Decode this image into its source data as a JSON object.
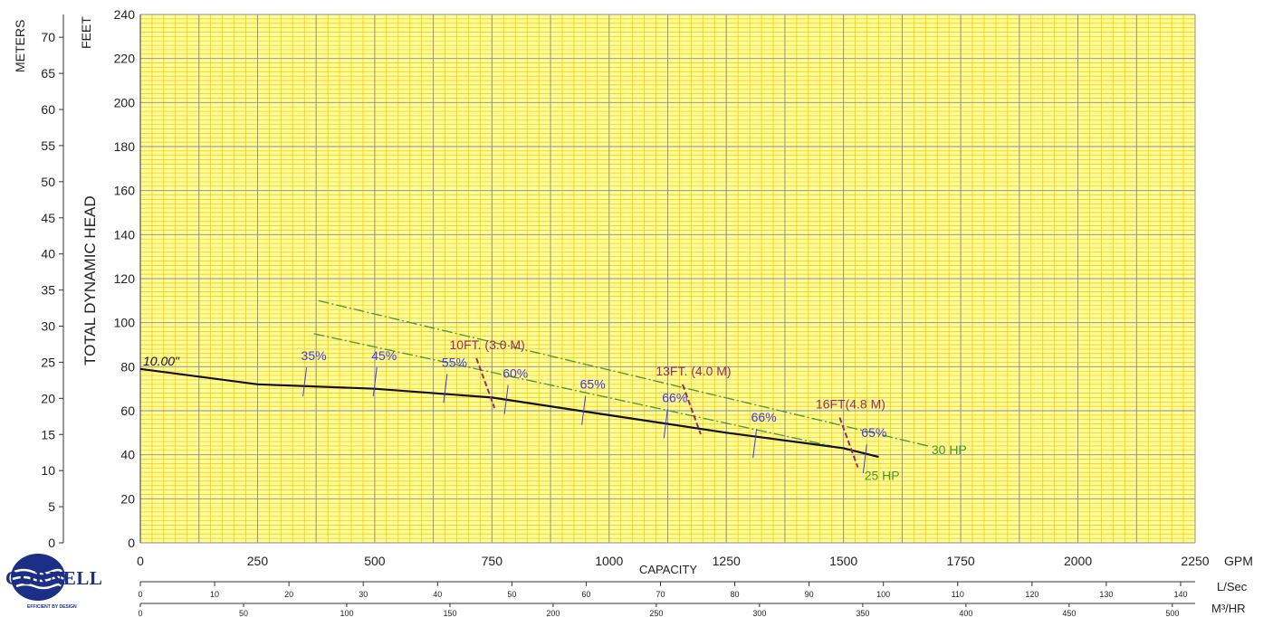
{
  "chart_data": {
    "type": "line",
    "ylabel": "TOTAL DYNAMIC HEAD",
    "y_units_left": "METERS",
    "y_units_right": "FEET",
    "xlabel": "CAPACITY",
    "x_units": [
      "GPM",
      "L/Sec",
      "M³/HR"
    ],
    "x_gpm_ticks": [
      0,
      250,
      500,
      750,
      1000,
      1250,
      1500,
      1750,
      2000,
      2250
    ],
    "x_lsec_ticks": [
      0,
      10,
      20,
      30,
      40,
      50,
      60,
      70,
      80,
      90,
      100,
      110,
      120,
      130,
      140
    ],
    "x_m3hr_ticks": [
      0,
      50,
      100,
      150,
      200,
      250,
      300,
      350,
      400,
      450,
      500
    ],
    "y_feet_ticks": [
      0,
      20,
      40,
      60,
      80,
      100,
      120,
      140,
      160,
      180,
      200,
      220,
      240
    ],
    "y_meter_ticks": [
      0,
      5,
      10,
      15,
      20,
      25,
      30,
      35,
      40,
      45,
      50,
      55,
      60,
      65,
      70
    ],
    "xlim_gpm": [
      0,
      2250
    ],
    "ylim_feet": [
      0,
      240
    ],
    "grid": true,
    "series": [
      {
        "name": "10.00\"",
        "color": "#111111",
        "x": [
          0,
          250,
          500,
          750,
          1000,
          1250,
          1500,
          1575
        ],
        "y": [
          79,
          72,
          70,
          66,
          58,
          50,
          43,
          39
        ]
      }
    ],
    "hp_lines": [
      {
        "name": "30 HP",
        "color": "#3a9a3a",
        "x": [
          380,
          1680
        ],
        "y": [
          110,
          44
        ]
      },
      {
        "name": "25 HP",
        "color": "#3a9a3a",
        "x": [
          370,
          1560
        ],
        "y": [
          95,
          40
        ]
      }
    ],
    "efficiency_labels": [
      {
        "text": "35%",
        "x": 370,
        "y": 83
      },
      {
        "text": "45%",
        "x": 520,
        "y": 83
      },
      {
        "text": "55%",
        "x": 670,
        "y": 80
      },
      {
        "text": "60%",
        "x": 800,
        "y": 75
      },
      {
        "text": "65%",
        "x": 965,
        "y": 70
      },
      {
        "text": "66%",
        "x": 1140,
        "y": 64
      },
      {
        "text": "66%",
        "x": 1330,
        "y": 55
      },
      {
        "text": "65%",
        "x": 1565,
        "y": 48
      }
    ],
    "npsh_labels": [
      {
        "text": "10FT. (3.0 M)",
        "x": 740,
        "y": 88
      },
      {
        "text": "13FT. (4.0 M)",
        "x": 1180,
        "y": 76
      },
      {
        "text": "16FT(4.8 M)",
        "x": 1515,
        "y": 61
      }
    ],
    "colors": {
      "grid_bg": "#fffc9a",
      "grid_minor": "#f5c800",
      "grid_major": "#8c8c8c",
      "efficiency": "#3a3aee",
      "npsh": "#9a2a6a",
      "hp": "#3a9a3a"
    }
  },
  "brand": {
    "name": "CORNELL",
    "tagline": "EFFICIENT BY DESIGN"
  }
}
